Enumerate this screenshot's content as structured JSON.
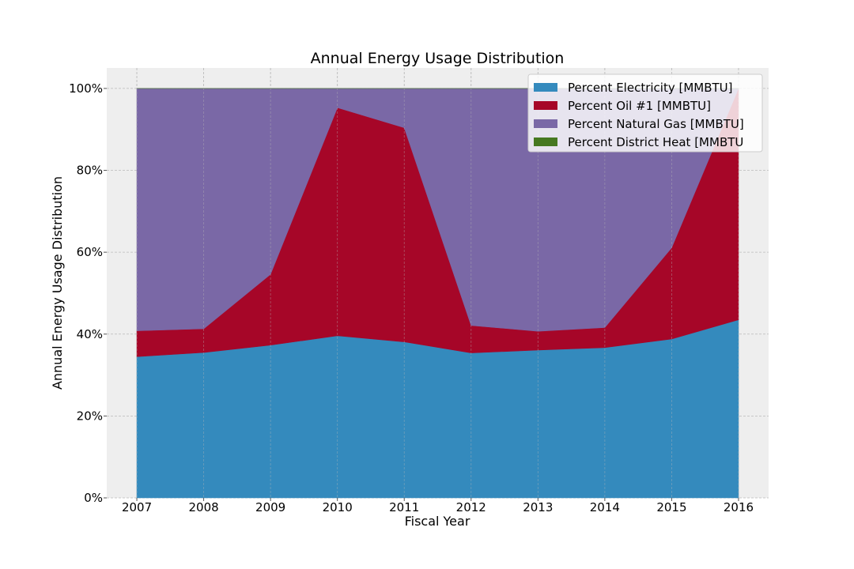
{
  "chart_data": {
    "type": "area",
    "stacked": true,
    "title": "Annual Energy Usage Distribution",
    "xlabel": "Fiscal Year",
    "ylabel": "Annual Energy Usage Distribution",
    "x": [
      2007,
      2008,
      2009,
      2010,
      2011,
      2012,
      2013,
      2014,
      2015,
      2016
    ],
    "xlim": [
      2006.55,
      2016.45
    ],
    "ylim": [
      0,
      1.05
    ],
    "y_ticks": [
      0,
      0.2,
      0.4,
      0.6,
      0.8,
      1.0
    ],
    "y_tick_labels": [
      "0%",
      "20%",
      "40%",
      "60%",
      "80%",
      "100%"
    ],
    "x_tick_labels": [
      "2007",
      "2008",
      "2009",
      "2010",
      "2011",
      "2012",
      "2013",
      "2014",
      "2015",
      "2016"
    ],
    "grid": true,
    "legend_position": "top-right",
    "series": [
      {
        "name": "Percent Electricity [MMBTU]",
        "color": "#348abd",
        "values": [
          0.345,
          0.355,
          0.373,
          0.396,
          0.381,
          0.354,
          0.361,
          0.367,
          0.388,
          0.435
        ]
      },
      {
        "name": "Percent Oil #1 [MMBTU]",
        "color": "#a60628",
        "values": [
          0.063,
          0.058,
          0.173,
          0.557,
          0.523,
          0.067,
          0.046,
          0.049,
          0.223,
          0.565
        ]
      },
      {
        "name": "Percent Natural Gas [MMBTU]",
        "color": "#7a68a6",
        "values": [
          0.592,
          0.587,
          0.454,
          0.047,
          0.096,
          0.579,
          0.593,
          0.584,
          0.389,
          0.0
        ]
      },
      {
        "name": "Percent District Heat [MMBTU",
        "color": "#467821",
        "values": [
          0,
          0,
          0,
          0,
          0,
          0,
          0,
          0,
          0,
          0
        ]
      }
    ]
  }
}
